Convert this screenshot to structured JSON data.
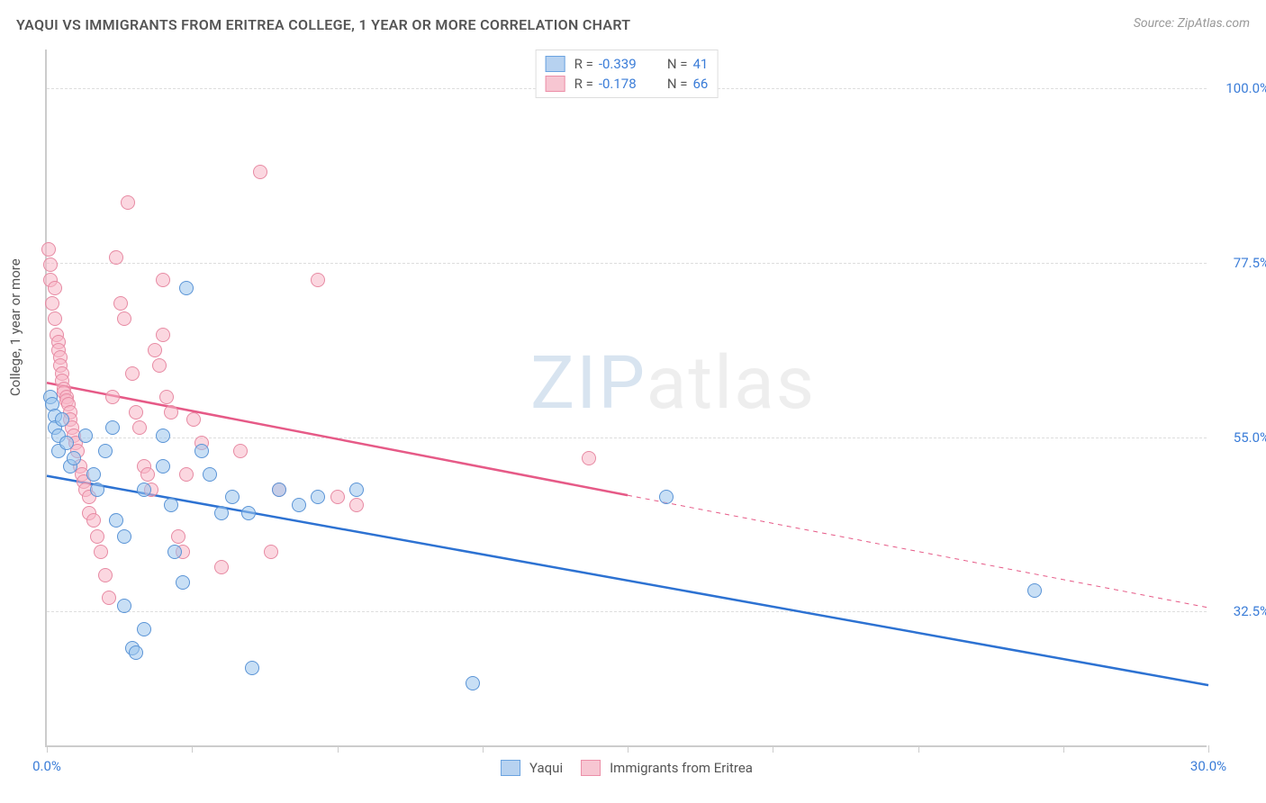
{
  "title": "YAQUI VS IMMIGRANTS FROM ERITREA COLLEGE, 1 YEAR OR MORE CORRELATION CHART",
  "source_label": "Source: ZipAtlas.com",
  "watermark": {
    "part1": "ZIP",
    "part2": "atlas"
  },
  "chart": {
    "type": "scatter",
    "ylabel": "College, 1 year or more",
    "xlim": [
      0,
      30
    ],
    "ylim": [
      15,
      105
    ],
    "x_ticks": [
      0,
      3.75,
      7.5,
      11.25,
      15,
      18.75,
      22.5,
      26.25,
      30
    ],
    "x_tick_labels": {
      "0": "0.0%",
      "30": "30.0%"
    },
    "y_gridlines": [
      32.5,
      55.0,
      77.5,
      100.0
    ],
    "y_tick_labels": [
      "32.5%",
      "55.0%",
      "77.5%",
      "100.0%"
    ],
    "background_color": "#ffffff",
    "grid_color": "#dddddd",
    "axis_color": "#cccccc",
    "tick_label_color_blue": "#3b7dd8",
    "axis_label_color": "#555555",
    "legend_top": {
      "rows": [
        {
          "swatch_fill": "#b7d2f0",
          "swatch_border": "#6aa3e0",
          "r_label": "R =",
          "r_value": "-0.339",
          "n_label": "N =",
          "n_value": "41"
        },
        {
          "swatch_fill": "#f7c6d2",
          "swatch_border": "#ec8fa8",
          "r_label": "R =",
          "r_value": "-0.178",
          "n_label": "N =",
          "n_value": "66"
        }
      ],
      "label_text_color": "#555555",
      "value_text_color": "#3b7dd8"
    },
    "legend_bottom": {
      "items": [
        {
          "swatch_fill": "#b7d2f0",
          "swatch_border": "#6aa3e0",
          "label": "Yaqui"
        },
        {
          "swatch_fill": "#f7c6d2",
          "swatch_border": "#ec8fa8",
          "label": "Immigrants from Eritrea"
        }
      ]
    },
    "series": [
      {
        "name": "Yaqui",
        "fill": "rgba(154,196,236,0.55)",
        "border": "#5a94d6",
        "trend": {
          "color": "#2d72d2",
          "width": 2.5,
          "solid_from_x": 0,
          "solid_to_x": 30,
          "y_at_x0": 50,
          "y_at_xmax": 23
        },
        "points": [
          [
            0.1,
            60
          ],
          [
            0.15,
            59
          ],
          [
            0.2,
            57.5
          ],
          [
            0.2,
            56
          ],
          [
            0.3,
            55
          ],
          [
            0.3,
            53
          ],
          [
            0.4,
            57
          ],
          [
            0.5,
            54
          ],
          [
            0.6,
            51
          ],
          [
            0.7,
            52
          ],
          [
            1.0,
            55
          ],
          [
            1.2,
            50
          ],
          [
            1.3,
            48
          ],
          [
            1.5,
            53
          ],
          [
            1.7,
            56
          ],
          [
            1.8,
            44
          ],
          [
            2.0,
            42
          ],
          [
            2.0,
            33
          ],
          [
            2.2,
            27.5
          ],
          [
            2.3,
            27
          ],
          [
            2.5,
            48
          ],
          [
            2.5,
            30
          ],
          [
            3.0,
            55
          ],
          [
            3.0,
            51
          ],
          [
            3.2,
            46
          ],
          [
            3.3,
            40
          ],
          [
            3.5,
            36
          ],
          [
            3.6,
            74
          ],
          [
            4.0,
            53
          ],
          [
            4.2,
            50
          ],
          [
            4.5,
            45
          ],
          [
            4.8,
            47
          ],
          [
            5.2,
            45
          ],
          [
            5.3,
            25
          ],
          [
            6.0,
            48
          ],
          [
            6.5,
            46
          ],
          [
            7.0,
            47
          ],
          [
            8.0,
            48
          ],
          [
            11.0,
            23
          ],
          [
            16.0,
            47
          ],
          [
            25.5,
            35
          ]
        ]
      },
      {
        "name": "Immigrants from Eritrea",
        "fill": "rgba(247,183,199,0.55)",
        "border": "#e78aa3",
        "trend": {
          "color": "#e65a87",
          "width": 2.5,
          "solid_from_x": 0,
          "solid_to_x": 15,
          "dashed_to_x": 30,
          "y_at_x0": 62,
          "y_at_xmax": 33
        },
        "points": [
          [
            0.05,
            79
          ],
          [
            0.1,
            77
          ],
          [
            0.1,
            75
          ],
          [
            0.15,
            72
          ],
          [
            0.2,
            74
          ],
          [
            0.2,
            70
          ],
          [
            0.25,
            68
          ],
          [
            0.3,
            67
          ],
          [
            0.3,
            66
          ],
          [
            0.35,
            65
          ],
          [
            0.35,
            64
          ],
          [
            0.4,
            63
          ],
          [
            0.4,
            62
          ],
          [
            0.45,
            61
          ],
          [
            0.45,
            60.5
          ],
          [
            0.5,
            60
          ],
          [
            0.5,
            59.5
          ],
          [
            0.55,
            59
          ],
          [
            0.6,
            58
          ],
          [
            0.6,
            57
          ],
          [
            0.65,
            56
          ],
          [
            0.7,
            55
          ],
          [
            0.75,
            54
          ],
          [
            0.8,
            53
          ],
          [
            0.85,
            51
          ],
          [
            0.9,
            50
          ],
          [
            0.95,
            49
          ],
          [
            1.0,
            48
          ],
          [
            1.1,
            47
          ],
          [
            1.1,
            45
          ],
          [
            1.2,
            44
          ],
          [
            1.3,
            42
          ],
          [
            1.4,
            40
          ],
          [
            1.5,
            37
          ],
          [
            1.6,
            34
          ],
          [
            1.7,
            60
          ],
          [
            1.8,
            78
          ],
          [
            1.9,
            72
          ],
          [
            2.0,
            70
          ],
          [
            2.1,
            85
          ],
          [
            2.2,
            63
          ],
          [
            2.3,
            58
          ],
          [
            2.4,
            56
          ],
          [
            2.5,
            51
          ],
          [
            2.6,
            50
          ],
          [
            2.7,
            48
          ],
          [
            2.8,
            66
          ],
          [
            2.9,
            64
          ],
          [
            3.0,
            75
          ],
          [
            3.0,
            68
          ],
          [
            3.1,
            60
          ],
          [
            3.2,
            58
          ],
          [
            3.4,
            42
          ],
          [
            3.5,
            40
          ],
          [
            3.6,
            50
          ],
          [
            3.8,
            57
          ],
          [
            4.0,
            54
          ],
          [
            4.5,
            38
          ],
          [
            5.0,
            53
          ],
          [
            5.5,
            89
          ],
          [
            5.8,
            40
          ],
          [
            6.0,
            48
          ],
          [
            7.0,
            75
          ],
          [
            7.5,
            47
          ],
          [
            8.0,
            46
          ],
          [
            14.0,
            52
          ]
        ]
      }
    ]
  }
}
